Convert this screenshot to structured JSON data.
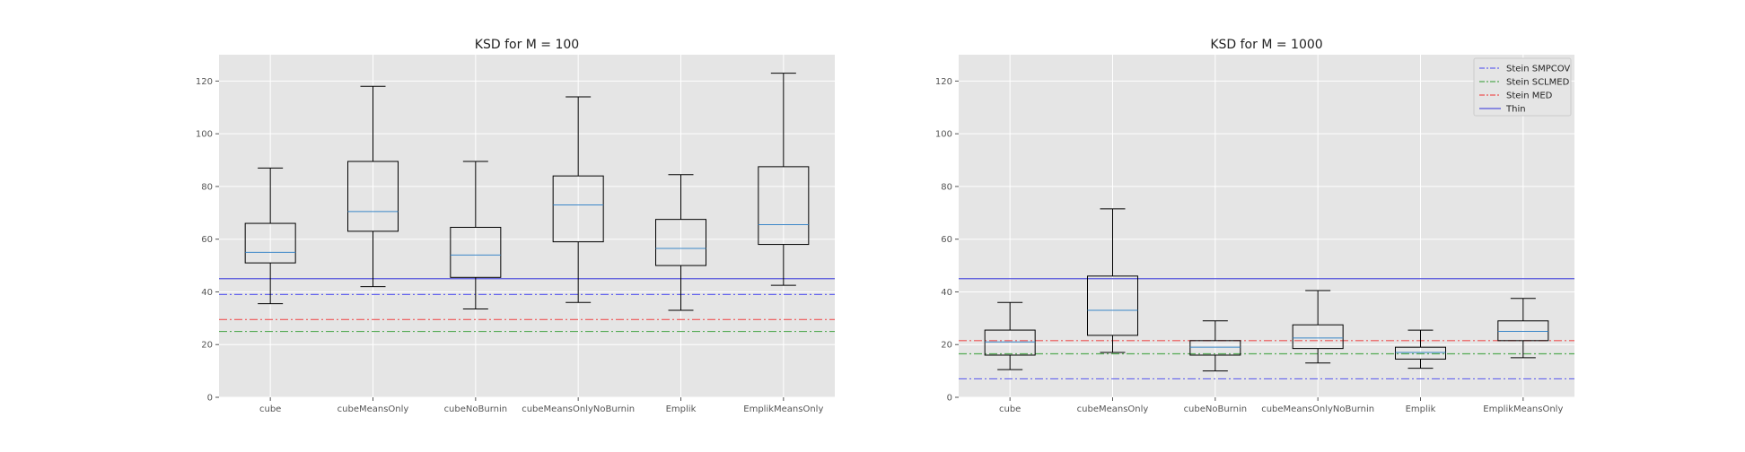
{
  "chart_data": [
    {
      "type": "box",
      "title": "KSD for M = 100",
      "categories": [
        "cube",
        "cubeMeansOnly",
        "cubeNoBurnin",
        "cubeMeansOnlyNoBurnin",
        "Emplik",
        "EmplikMeansOnly"
      ],
      "boxes": [
        {
          "whisker_low": 35.5,
          "q1": 51,
          "median": 55,
          "q3": 66,
          "whisker_high": 87
        },
        {
          "whisker_low": 42,
          "q1": 63,
          "median": 70.5,
          "q3": 89.5,
          "whisker_high": 118
        },
        {
          "whisker_low": 33.5,
          "q1": 45.5,
          "median": 54,
          "q3": 64.5,
          "whisker_high": 89.5
        },
        {
          "whisker_low": 36,
          "q1": 59,
          "median": 73,
          "q3": 84,
          "whisker_high": 114
        },
        {
          "whisker_low": 33,
          "q1": 50,
          "median": 56.5,
          "q3": 67.5,
          "whisker_high": 84.5
        },
        {
          "whisker_low": 42.5,
          "q1": 58,
          "median": 65.5,
          "q3": 87.5,
          "whisker_high": 123
        }
      ],
      "reference_lines": [
        {
          "name": "Stein SMPCOV",
          "value": 39,
          "color": "#6666ee",
          "style": "dashdot"
        },
        {
          "name": "Stein SCLMED",
          "value": 25,
          "color": "#55aa55",
          "style": "dashdot"
        },
        {
          "name": "Stein MED",
          "value": 29.5,
          "color": "#ee5555",
          "style": "dashdot"
        },
        {
          "name": "Thin",
          "value": 45,
          "color": "#5555dd",
          "style": "solid"
        }
      ],
      "ylim": [
        0,
        130
      ],
      "yticks": [
        0,
        20,
        40,
        60,
        80,
        100,
        120
      ],
      "grid": true,
      "legend": null
    },
    {
      "type": "box",
      "title": "KSD for M = 1000",
      "categories": [
        "cube",
        "cubeMeansOnly",
        "cubeNoBurnin",
        "cubeMeansOnlyNoBurnin",
        "Emplik",
        "EmplikMeansOnly"
      ],
      "boxes": [
        {
          "whisker_low": 10.5,
          "q1": 16,
          "median": 21,
          "q3": 25.5,
          "whisker_high": 36
        },
        {
          "whisker_low": 17,
          "q1": 23.5,
          "median": 33,
          "q3": 46,
          "whisker_high": 71.5
        },
        {
          "whisker_low": 10,
          "q1": 16,
          "median": 19,
          "q3": 21.5,
          "whisker_high": 29
        },
        {
          "whisker_low": 13,
          "q1": 18.5,
          "median": 22.5,
          "q3": 27.5,
          "whisker_high": 40.5
        },
        {
          "whisker_low": 11,
          "q1": 14.5,
          "median": 17,
          "q3": 19,
          "whisker_high": 25.5
        },
        {
          "whisker_low": 15,
          "q1": 21.5,
          "median": 25,
          "q3": 29,
          "whisker_high": 37.5
        }
      ],
      "reference_lines": [
        {
          "name": "Stein SMPCOV",
          "value": 7,
          "color": "#6666ee",
          "style": "dashdot"
        },
        {
          "name": "Stein SCLMED",
          "value": 16.5,
          "color": "#55aa55",
          "style": "dashdot"
        },
        {
          "name": "Stein MED",
          "value": 21.5,
          "color": "#ee5555",
          "style": "dashdot"
        },
        {
          "name": "Thin",
          "value": 45,
          "color": "#5555dd",
          "style": "solid"
        }
      ],
      "ylim": [
        0,
        130
      ],
      "yticks": [
        0,
        20,
        40,
        60,
        80,
        100,
        120
      ],
      "grid": true,
      "legend": "top-right"
    }
  ],
  "colors": {
    "plot_background": "#e5e5e5",
    "grid": "#ffffff",
    "box": "#000000",
    "median": "#3a86c8"
  }
}
